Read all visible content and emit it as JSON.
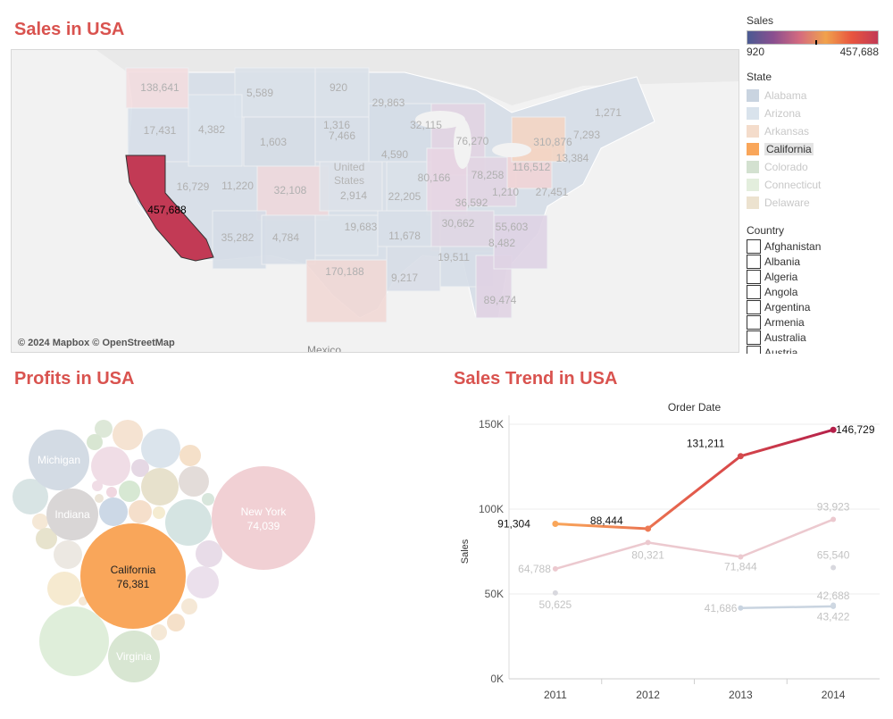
{
  "titles": {
    "sales_map": "Sales in USA",
    "profits": "Profits in USA",
    "trend": "Sales Trend in USA"
  },
  "map": {
    "attribution": "© 2024 Mapbox © OpenStreetMap",
    "place_labels": [
      "United",
      "States",
      "Mexico"
    ],
    "highlight": {
      "state": "California",
      "value": "457,688",
      "color": "#c23a55"
    },
    "value_labels": [
      "138,641",
      "5,589",
      "920",
      "29,863",
      "1,271",
      "17,431",
      "4,382",
      "1,316",
      "32,115",
      "7,293",
      "1,603",
      "7,466",
      "76,270",
      "310,876",
      "13,384",
      "4,590",
      "116,512",
      "16,729",
      "11,220",
      "32,108",
      "2,914",
      "80,166",
      "78,258",
      "27,451",
      "22,205",
      "1,210",
      "36,592",
      "35,282",
      "4,784",
      "19,683",
      "11,678",
      "30,662",
      "55,603",
      "8,482",
      "170,188",
      "19,511",
      "9,217",
      "89,474"
    ]
  },
  "legend": {
    "sales_title": "Sales",
    "sales_min": "920",
    "sales_max": "457,688",
    "state_title": "State",
    "states": [
      {
        "name": "Alabama",
        "color": "#c9d4e0"
      },
      {
        "name": "Arizona",
        "color": "#d9e3ec"
      },
      {
        "name": "Arkansas",
        "color": "#f4dccb"
      },
      {
        "name": "California",
        "color": "#f9a65a",
        "selected": true
      },
      {
        "name": "Colorado",
        "color": "#d3e1d0"
      },
      {
        "name": "Connecticut",
        "color": "#e3eedd"
      },
      {
        "name": "Delaware",
        "color": "#ece2cf"
      }
    ],
    "country_title": "Country",
    "countries": [
      "Afghanistan",
      "Albania",
      "Algeria",
      "Angola",
      "Argentina",
      "Armenia",
      "Australia",
      "Austria"
    ]
  },
  "bubbles": [
    {
      "label": "California",
      "value": "76,381",
      "color": "#f9a65a",
      "r": 59,
      "highlight": true
    },
    {
      "label": "New York",
      "value": "74,039",
      "color": "#f1d0d4",
      "r": 58
    },
    {
      "label": "Michigan",
      "value": "",
      "color": "#d3dbe4",
      "r": 34
    },
    {
      "label": "Indiana",
      "value": "",
      "color": "#d9d6d6",
      "r": 29
    },
    {
      "label": "Virginia",
      "value": "",
      "color": "#d8e6d2",
      "r": 29
    }
  ],
  "chart_data": {
    "type": "line",
    "title": "Order Date",
    "ylabel": "Sales",
    "categories": [
      "2011",
      "2012",
      "2013",
      "2014"
    ],
    "ylim": [
      0,
      150000
    ],
    "yticks": [
      "0K",
      "50K",
      "100K",
      "150K"
    ],
    "series": [
      {
        "values": [
          91304,
          88444,
          131211,
          146729
        ],
        "labels": [
          "91,304",
          "88,444",
          "131,211",
          "146,729"
        ],
        "highlight": true
      },
      {
        "values": [
          64788,
          80321,
          71844,
          93923
        ],
        "labels": [
          "64,788",
          "80,321",
          "71,844",
          "93,923"
        ],
        "color": "#ecc9cf"
      },
      {
        "values": [
          null,
          null,
          41686,
          42688
        ],
        "labels": [
          "",
          "",
          "41,686",
          "42,688"
        ],
        "color": "#c9d4e0"
      },
      {
        "values": [
          50625,
          null,
          null,
          65540
        ],
        "labels": [
          "50,625",
          "",
          "",
          "65,540"
        ],
        "color": "#d8d8de",
        "points_only": true
      },
      {
        "values": [
          null,
          null,
          null,
          43422
        ],
        "labels": [
          "",
          "",
          "",
          "43,422"
        ],
        "color": "#cfd8e2",
        "points_only": true
      }
    ]
  }
}
